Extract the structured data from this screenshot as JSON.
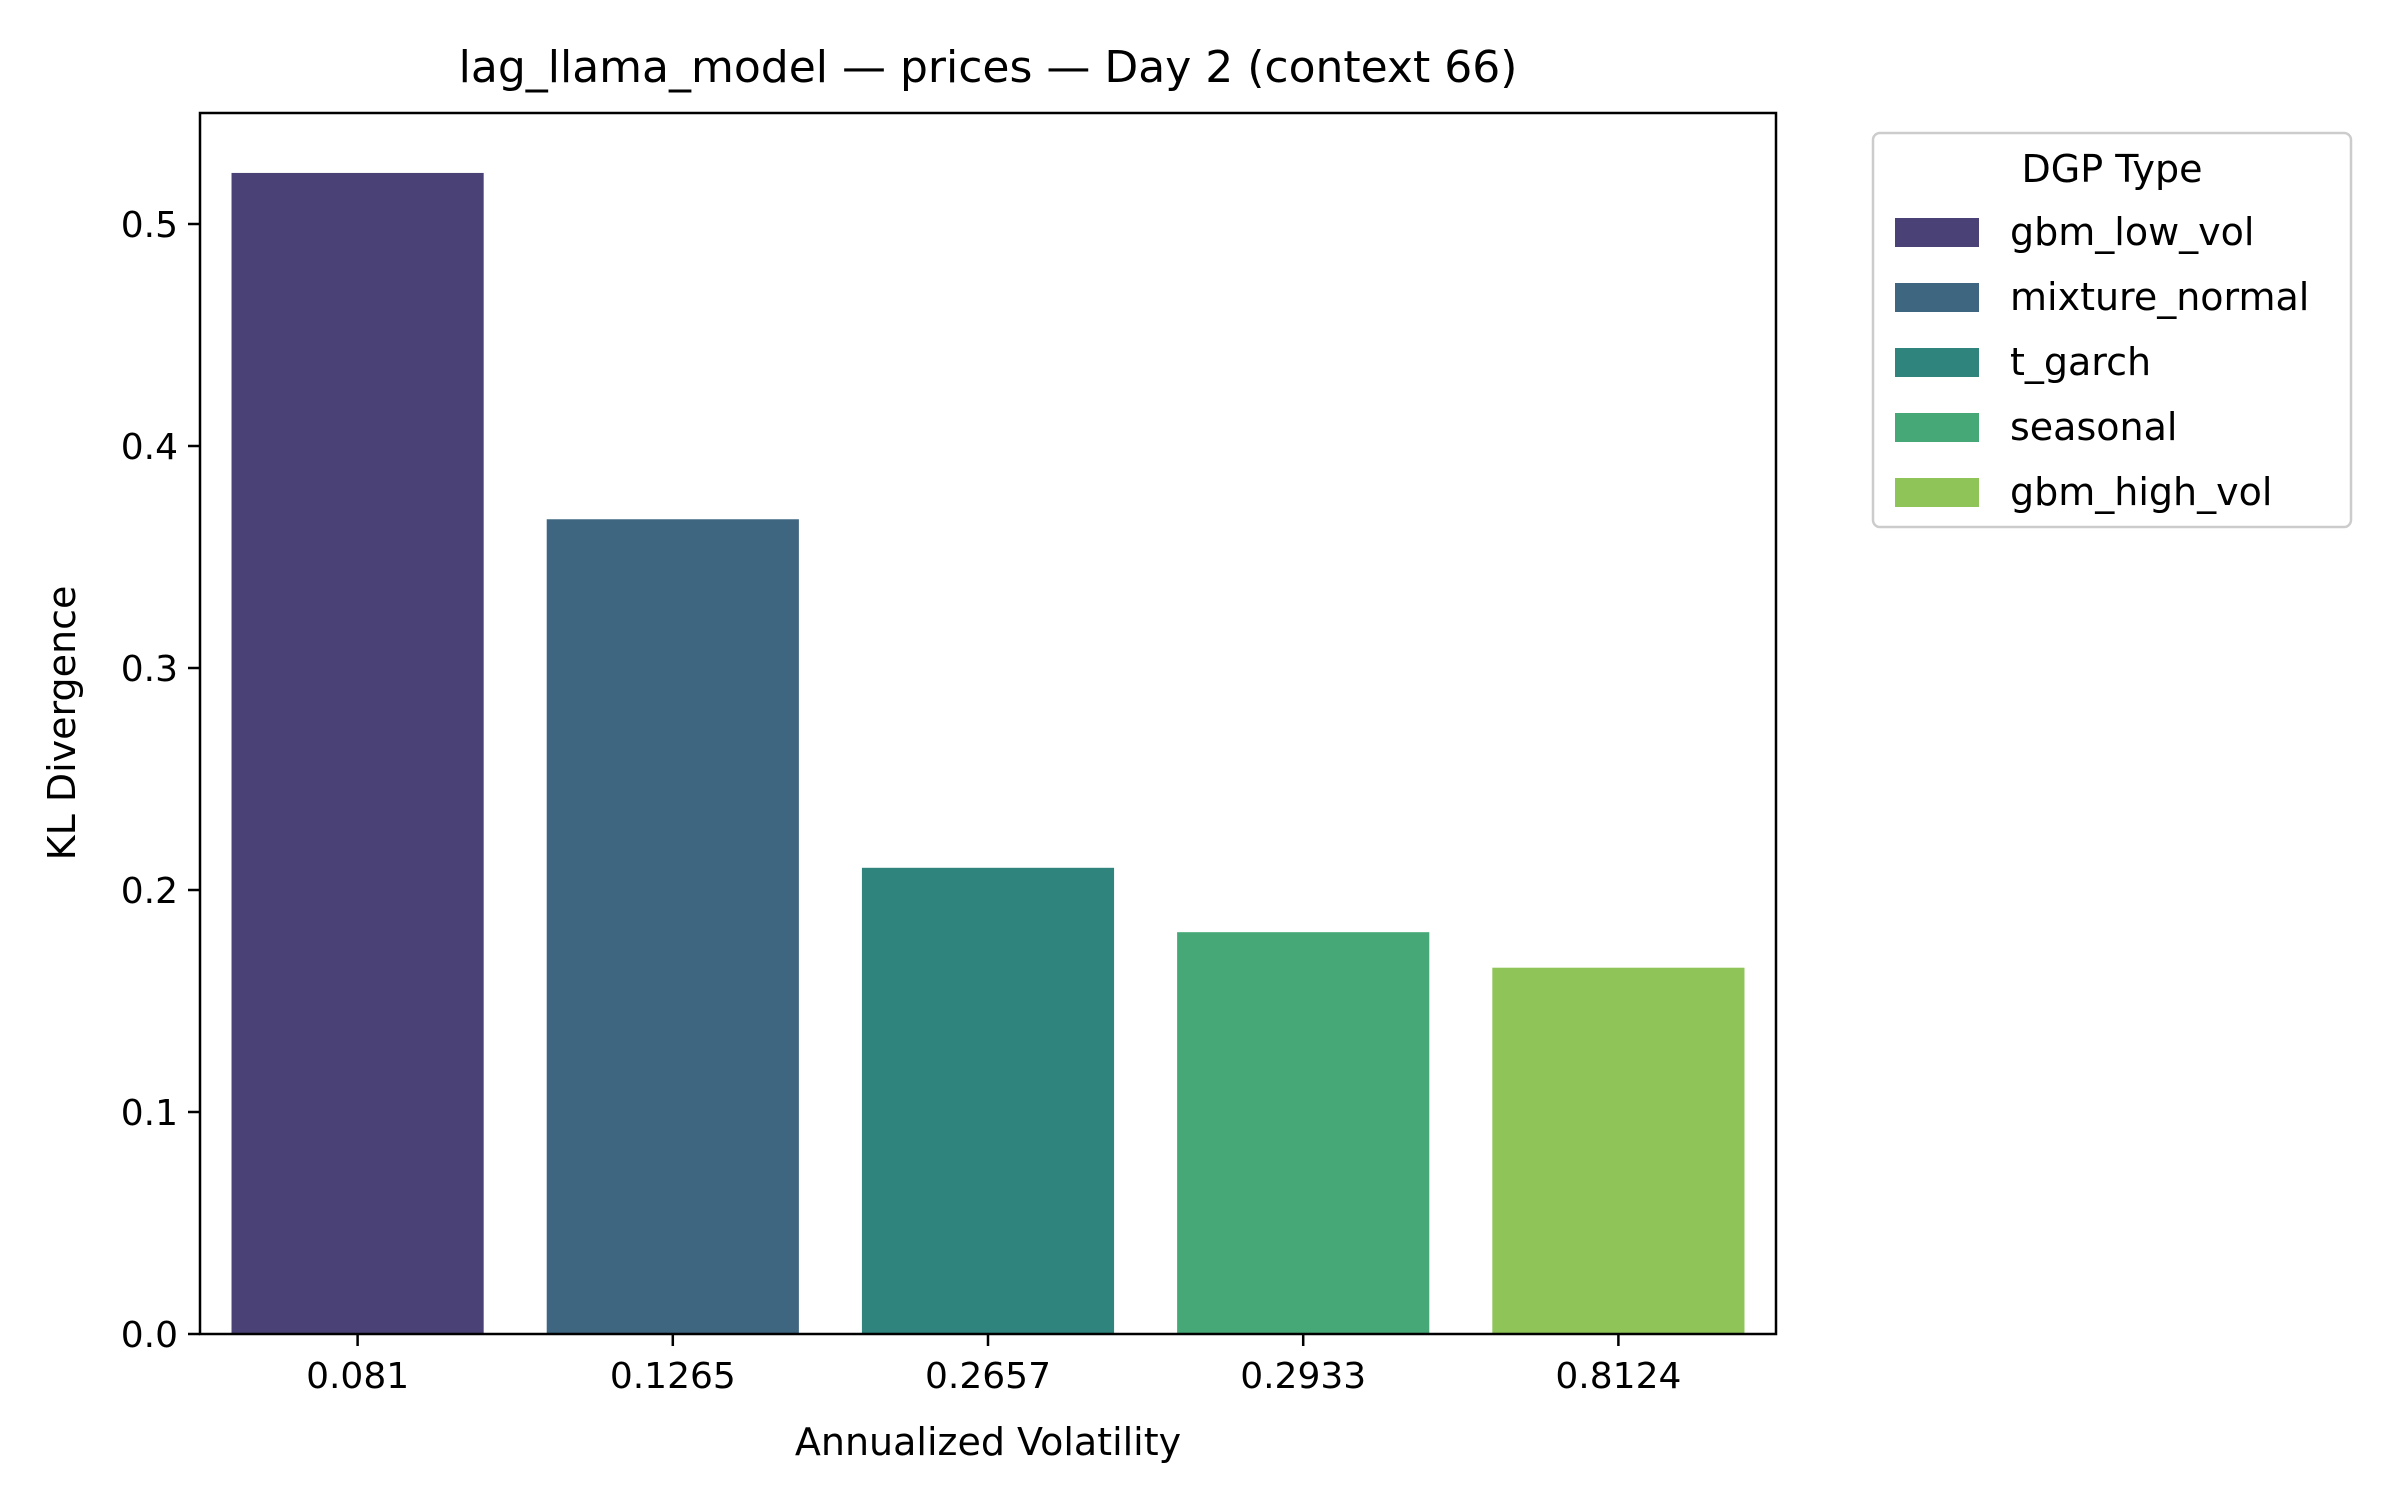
{
  "chart_data": {
    "type": "bar",
    "title": "lag_llama_model — prices — Day 2 (context 66)",
    "xlabel": "Annualized Volatility",
    "ylabel": "KL Divergence",
    "categories": [
      "0.081",
      "0.1265",
      "0.2657",
      "0.2933",
      "0.8124"
    ],
    "values": [
      0.523,
      0.367,
      0.21,
      0.181,
      0.165
    ],
    "ylim": [
      0,
      0.55
    ],
    "yticks": [
      "0.0",
      "0.1",
      "0.2",
      "0.3",
      "0.4",
      "0.5"
    ],
    "grid": false,
    "legend": {
      "title": "DGP Type",
      "placement": "outside-top-right",
      "entries": [
        {
          "name": "gbm_low_vol",
          "color": "#4a4277"
        },
        {
          "name": "mixture_normal",
          "color": "#3e6680"
        },
        {
          "name": "t_garch",
          "color": "#2f847e"
        },
        {
          "name": "seasonal",
          "color": "#46a877"
        },
        {
          "name": "gbm_high_vol",
          "color": "#8fc558"
        }
      ]
    }
  }
}
